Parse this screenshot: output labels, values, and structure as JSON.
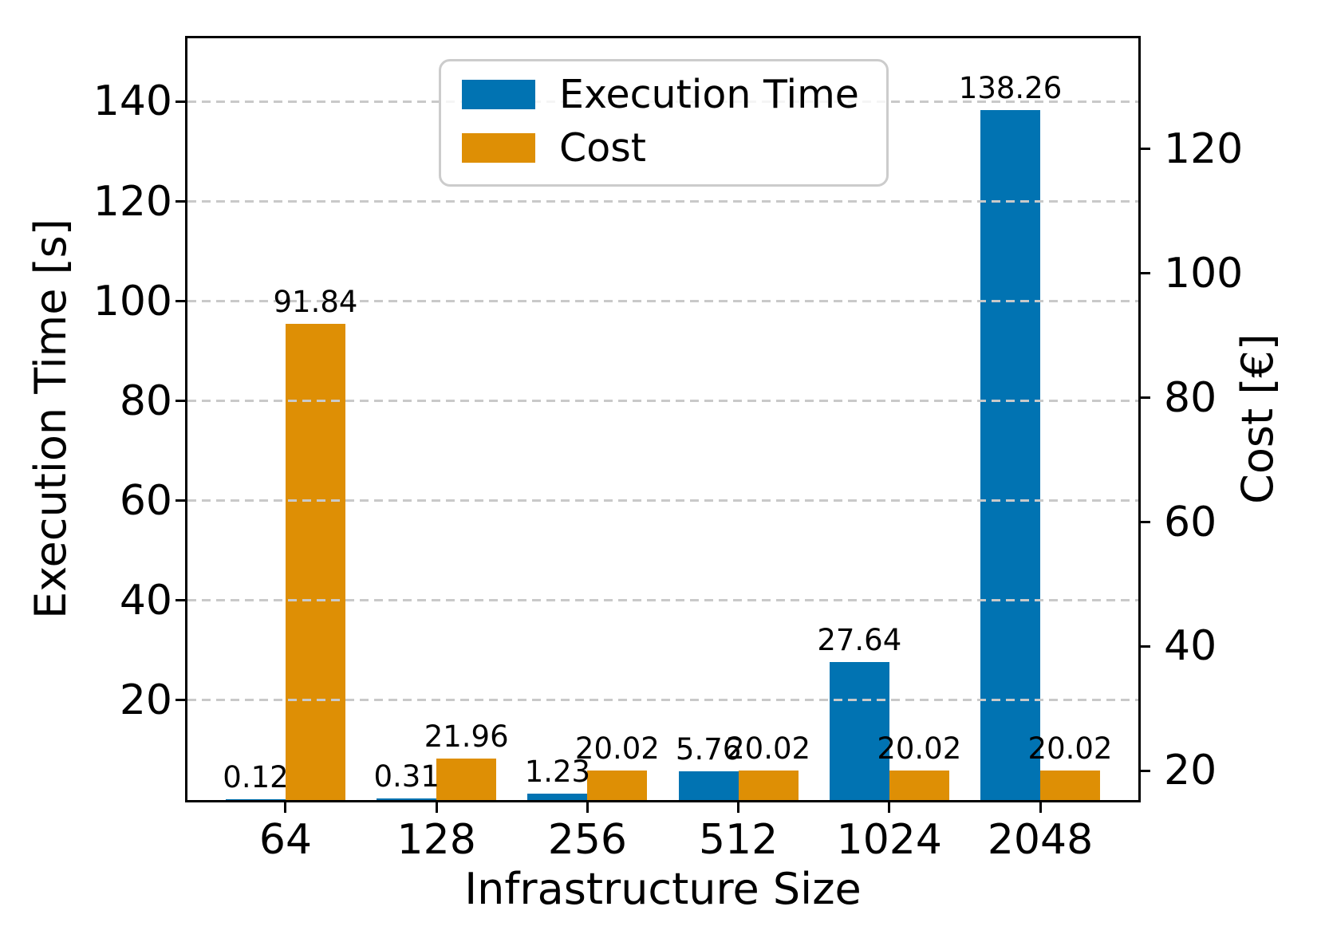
{
  "figure": {
    "background": "#ffffff",
    "frame_color": "#000000",
    "grid_color": "#c9c9c9"
  },
  "chart_data": {
    "type": "bar",
    "categories": [
      "64",
      "128",
      "256",
      "512",
      "1024",
      "2048"
    ],
    "series": [
      {
        "name": "Execution Time",
        "axis": "left",
        "color": "#0173b2",
        "values": [
          0.12,
          0.31,
          1.23,
          5.76,
          27.64,
          138.26
        ]
      },
      {
        "name": "Cost",
        "axis": "right",
        "color": "#de8f05",
        "values": [
          91.84,
          21.96,
          20.02,
          20.02,
          20.02,
          20.02
        ]
      }
    ],
    "bar_value_labels": [
      "0.12",
      "0.31",
      "1.23",
      "5.76",
      "27.64",
      "138.26",
      "91.84",
      "21.96",
      "20.02",
      "20.02",
      "20.02",
      "20.02"
    ],
    "xlabel": "Infrastructure Size",
    "left_axis": {
      "label": "Execution Time [s]",
      "ticks": [
        20,
        40,
        60,
        80,
        100,
        120,
        140
      ],
      "range": [
        0,
        152.7
      ]
    },
    "right_axis": {
      "label": "Cost [€]",
      "ticks": [
        20,
        40,
        60,
        80,
        100,
        120
      ],
      "range": [
        15.3,
        137.8
      ]
    },
    "legend": {
      "position": "upper-left",
      "entries": [
        "Execution Time",
        "Cost"
      ]
    },
    "grid": {
      "axis": "y",
      "style": "dashed",
      "aligned_to": "left-ticks"
    }
  }
}
